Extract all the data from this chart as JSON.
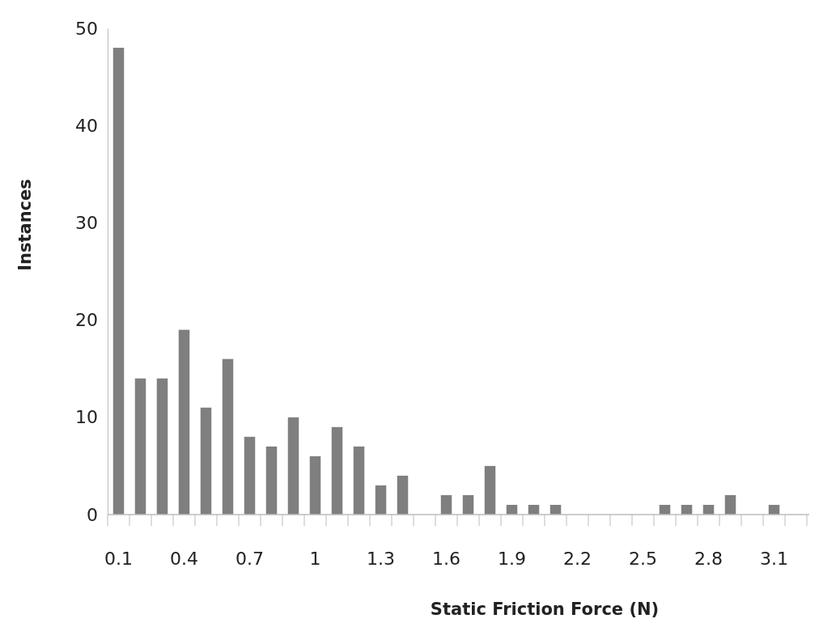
{
  "chart_data": {
    "type": "bar",
    "xlabel": "Static Friction Force (N)",
    "ylabel": "Instances",
    "categories": [
      "0.1",
      null,
      null,
      "0.4",
      null,
      null,
      "0.7",
      null,
      null,
      "1",
      null,
      null,
      "1.3",
      null,
      null,
      "1.6",
      null,
      null,
      "1.9",
      null,
      null,
      "2.2",
      null,
      null,
      "2.5",
      null,
      null,
      "2.8",
      null,
      null,
      "3.1",
      null
    ],
    "values": [
      48,
      14,
      14,
      19,
      11,
      16,
      8,
      7,
      10,
      6,
      9,
      7,
      3,
      4,
      0,
      2,
      2,
      5,
      1,
      1,
      1,
      0,
      0,
      0,
      0,
      1,
      1,
      1,
      2,
      0,
      1,
      0
    ],
    "color": "#7f7f7f",
    "ylim": [
      0,
      50
    ],
    "yticks": [
      0,
      10,
      20,
      30,
      40,
      50
    ]
  }
}
